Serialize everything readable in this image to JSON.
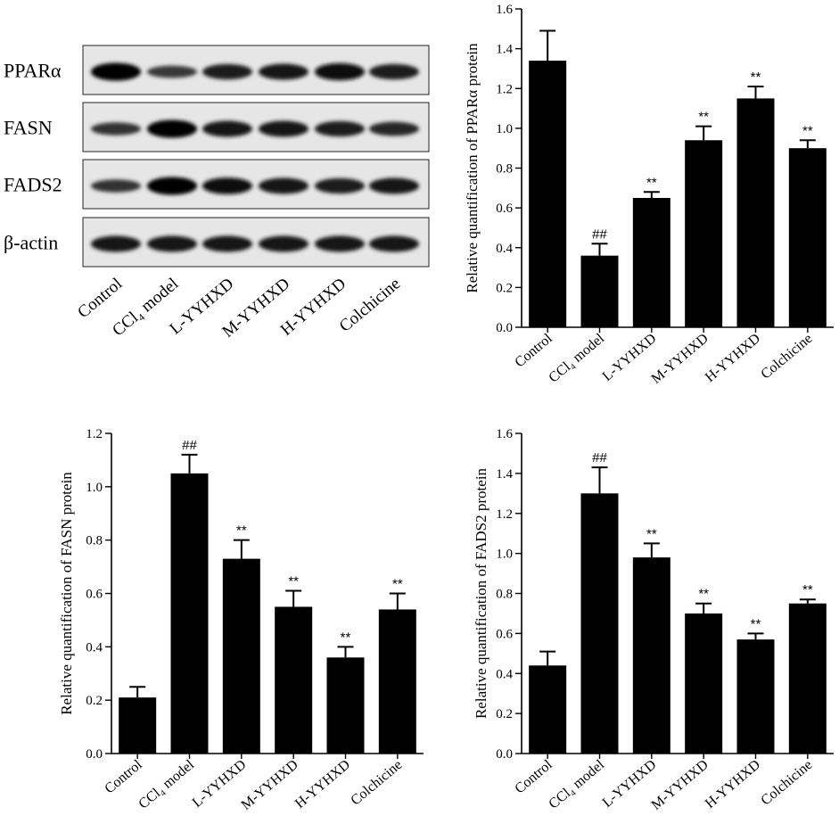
{
  "western_blot": {
    "rows": [
      {
        "label": "PPARα",
        "intensity": [
          1.0,
          0.55,
          0.8,
          0.85,
          0.95,
          0.8
        ]
      },
      {
        "label": "FASN",
        "intensity": [
          0.6,
          1.0,
          0.85,
          0.85,
          0.8,
          0.7
        ]
      },
      {
        "label": "FADS2",
        "intensity": [
          0.6,
          1.0,
          0.9,
          0.85,
          0.8,
          0.85
        ]
      },
      {
        "label": "β-actin",
        "intensity": [
          0.85,
          0.85,
          0.85,
          0.85,
          0.85,
          0.85
        ]
      }
    ],
    "lanes": [
      "Control",
      "CCl₄ model",
      "L-YYHXD",
      "M-YYHXD",
      "H-YYHXD",
      "Colchicine"
    ]
  },
  "chart_data": [
    {
      "type": "bar",
      "ylabel": "Relative quantification of PPARα protein",
      "categories": [
        "Control",
        "CCl₄ model",
        "L-YYHXD",
        "M-YYHXD",
        "H-YYHXD",
        "Colchicine"
      ],
      "values": [
        1.34,
        0.36,
        0.65,
        0.94,
        1.15,
        0.9
      ],
      "errors": [
        0.15,
        0.06,
        0.03,
        0.07,
        0.06,
        0.04
      ],
      "markers": [
        "",
        "##",
        "**",
        "**",
        "**",
        "**"
      ],
      "ylim": [
        0,
        1.6
      ],
      "yticks": [
        "0.0",
        "0.2",
        "0.4",
        "0.6",
        "0.8",
        "1.0",
        "1.2",
        "1.4",
        "1.6"
      ],
      "color": "#000000"
    },
    {
      "type": "bar",
      "ylabel": "Relative quantification of FASN protein",
      "categories": [
        "Control",
        "CCl₄ model",
        "L-YYHXD",
        "M-YYHXD",
        "H-YYHXD",
        "Colchicine"
      ],
      "values": [
        0.21,
        1.05,
        0.73,
        0.55,
        0.36,
        0.54
      ],
      "errors": [
        0.04,
        0.07,
        0.07,
        0.06,
        0.04,
        0.06
      ],
      "markers": [
        "",
        "##",
        "**",
        "**",
        "**",
        "**"
      ],
      "ylim": [
        0,
        1.2
      ],
      "yticks": [
        "0.0",
        "0.2",
        "0.4",
        "0.6",
        "0.8",
        "1.0",
        "1.2"
      ],
      "color": "#000000"
    },
    {
      "type": "bar",
      "ylabel": "Relative quantification of FADS2 protein",
      "categories": [
        "Control",
        "CCl₄ model",
        "L-YYHXD",
        "M-YYHXD",
        "H-YYHXD",
        "Colchicine"
      ],
      "values": [
        0.44,
        1.3,
        0.98,
        0.7,
        0.57,
        0.75
      ],
      "errors": [
        0.07,
        0.13,
        0.07,
        0.05,
        0.03,
        0.02
      ],
      "markers": [
        "",
        "##",
        "**",
        "**",
        "**",
        "**"
      ],
      "ylim": [
        0,
        1.6
      ],
      "yticks": [
        "0.0",
        "0.2",
        "0.4",
        "0.6",
        "0.8",
        "1.0",
        "1.2",
        "1.4",
        "1.6"
      ],
      "color": "#000000"
    }
  ]
}
